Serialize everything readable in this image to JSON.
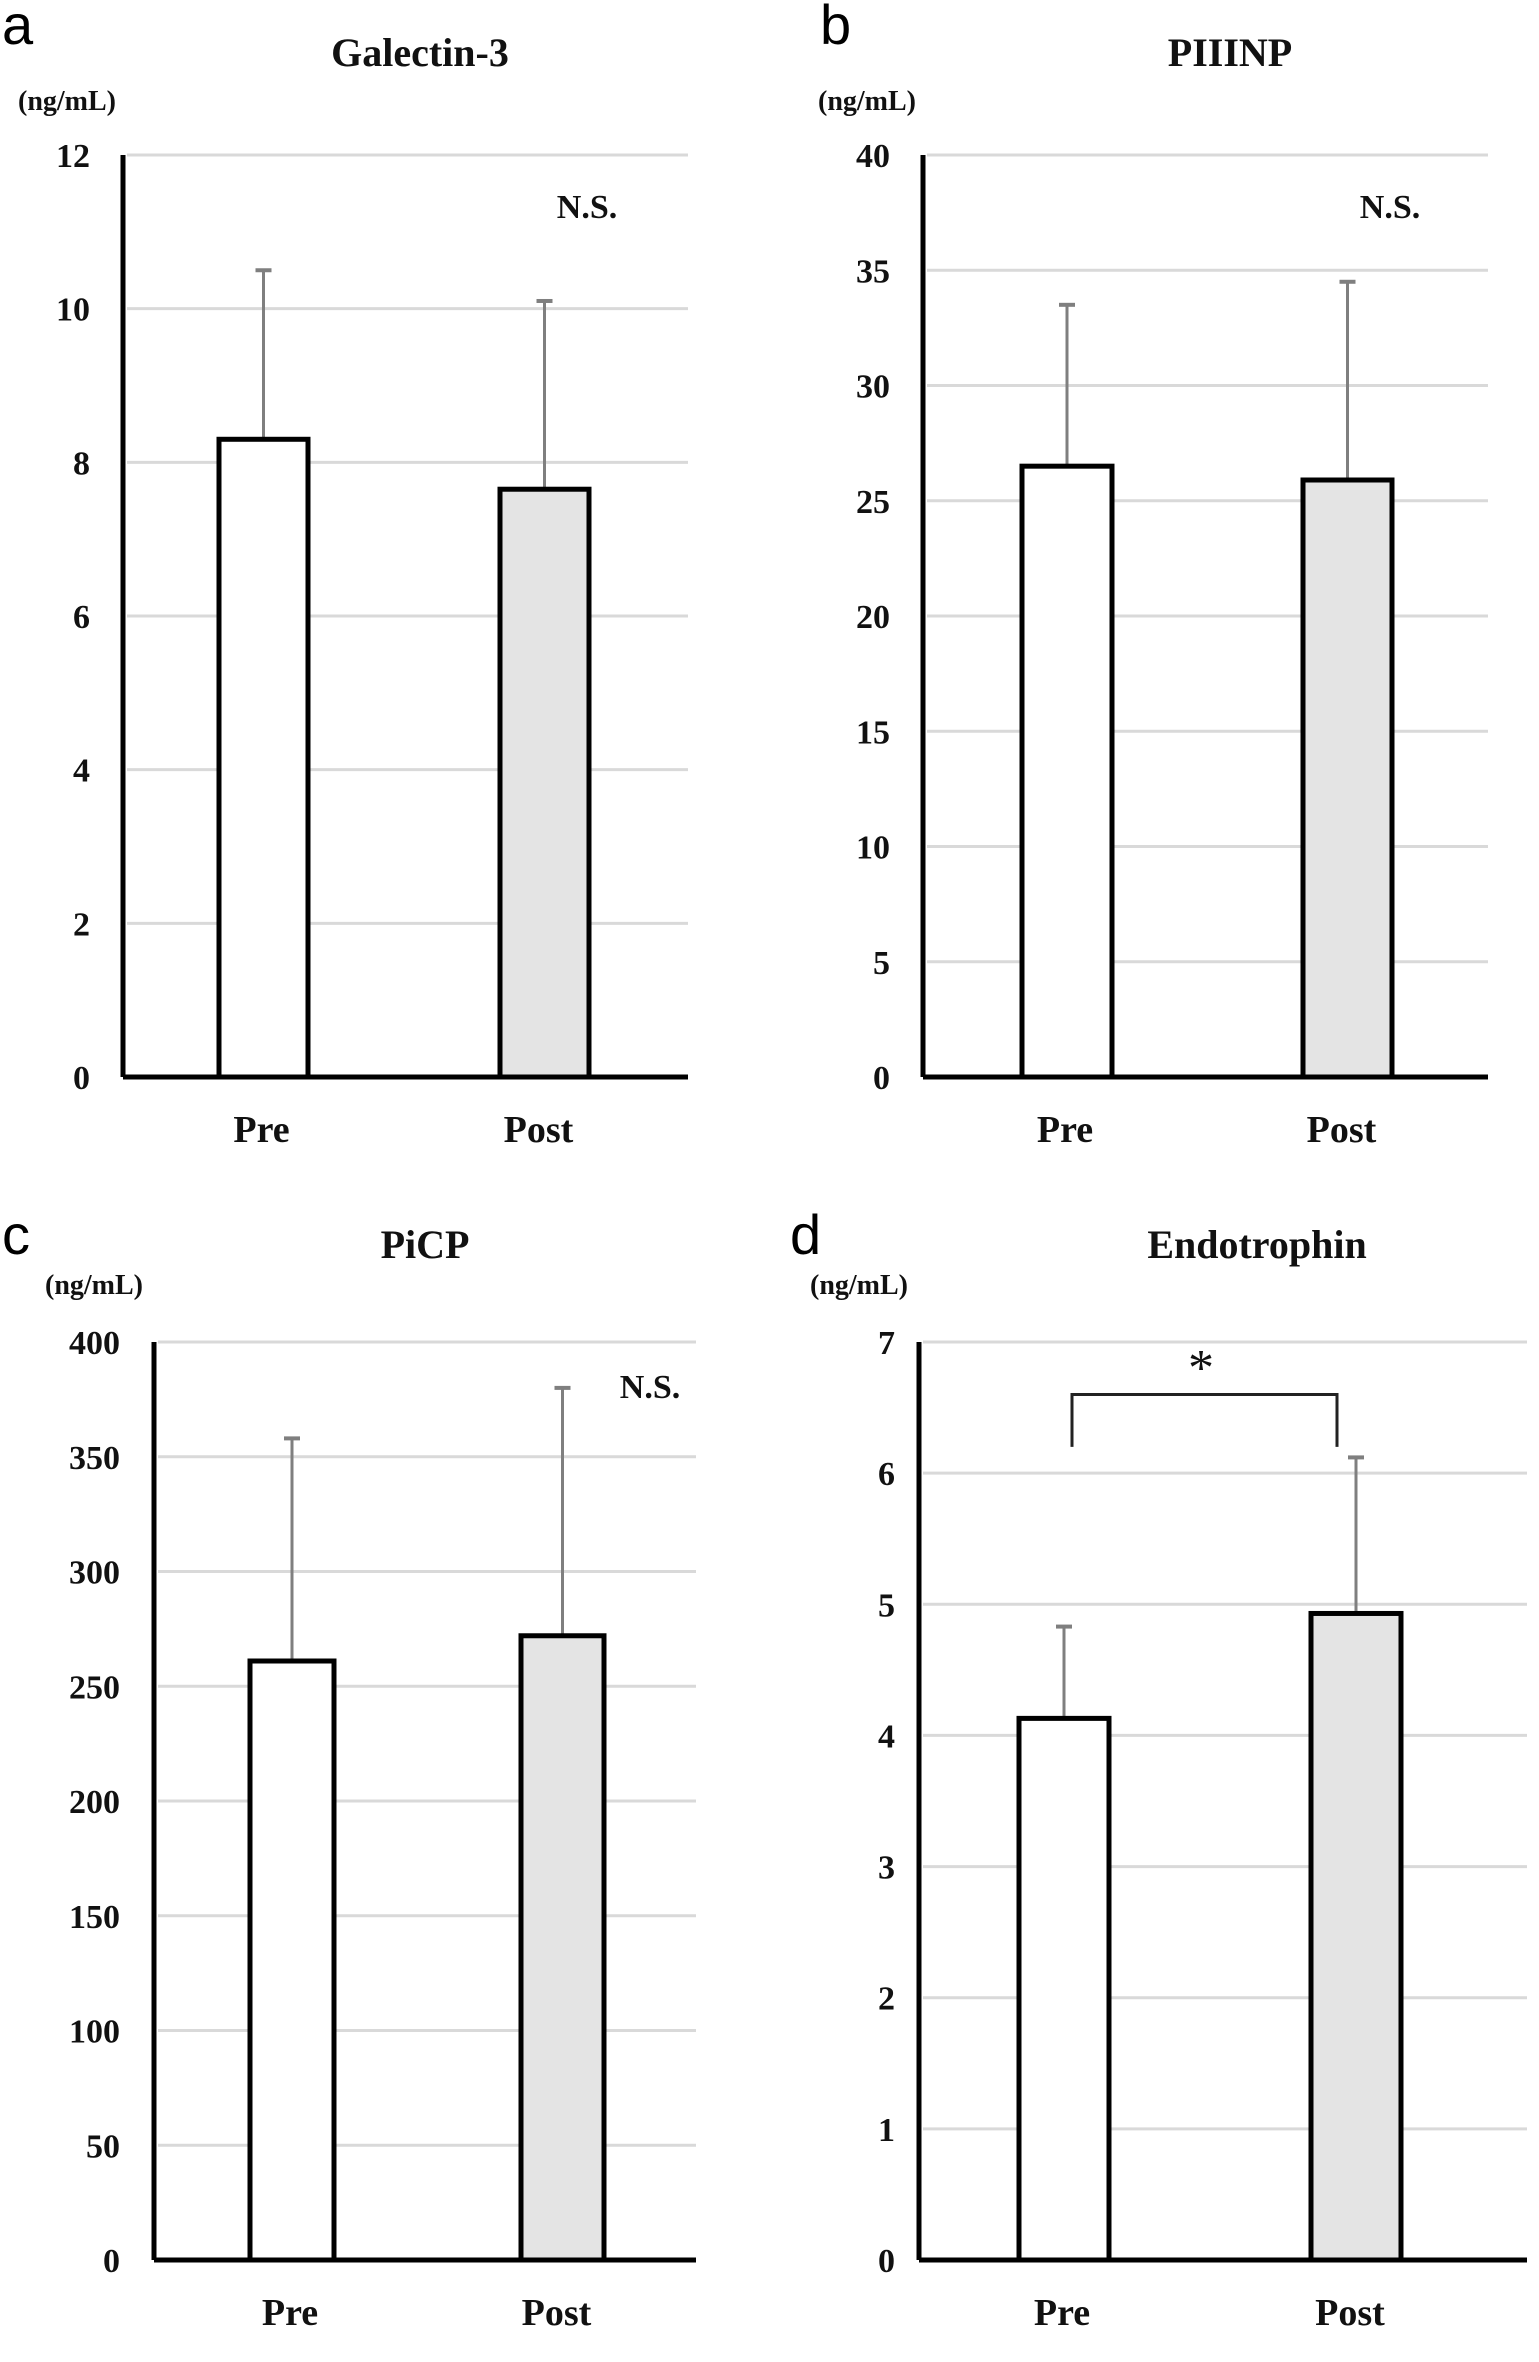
{
  "figure": {
    "panels": [
      "a",
      "b",
      "c",
      "d"
    ]
  },
  "chart_data": [
    {
      "type": "bar",
      "panel_label": "a",
      "title": "Galectin-3",
      "ylabel": "(ng/mL)",
      "xlabel": "",
      "categories": [
        "Pre",
        "Post"
      ],
      "values": [
        8.3,
        7.65
      ],
      "error_upper": [
        10.5,
        10.1
      ],
      "ylim": [
        0,
        12
      ],
      "yticks": [
        0,
        2,
        4,
        6,
        8,
        10,
        12
      ],
      "grid": true,
      "bar_fills": [
        "#ffffff",
        "#e4e4e4"
      ],
      "significance": {
        "label": "N.S.",
        "type": "text"
      }
    },
    {
      "type": "bar",
      "panel_label": "b",
      "title": "PIIINP",
      "ylabel": "(ng/mL)",
      "xlabel": "",
      "categories": [
        "Pre",
        "Post"
      ],
      "values": [
        26.5,
        25.9
      ],
      "error_upper": [
        33.5,
        34.5
      ],
      "ylim": [
        0,
        40
      ],
      "yticks": [
        0,
        5,
        10,
        15,
        20,
        25,
        30,
        35,
        40
      ],
      "grid": true,
      "bar_fills": [
        "#ffffff",
        "#e4e4e4"
      ],
      "significance": {
        "label": "N.S.",
        "type": "text"
      }
    },
    {
      "type": "bar",
      "panel_label": "c",
      "title": "PiCP",
      "ylabel": "(ng/mL)",
      "xlabel": "",
      "categories": [
        "Pre",
        "Post"
      ],
      "values": [
        261,
        272
      ],
      "error_upper": [
        358,
        380
      ],
      "ylim": [
        0,
        400
      ],
      "yticks": [
        0,
        50,
        100,
        150,
        200,
        250,
        300,
        350,
        400
      ],
      "grid": true,
      "bar_fills": [
        "#ffffff",
        "#e4e4e4"
      ],
      "significance": {
        "label": "N.S.",
        "type": "text"
      }
    },
    {
      "type": "bar",
      "panel_label": "d",
      "title": "Endotrophin",
      "ylabel": "(ng/mL)",
      "xlabel": "",
      "categories": [
        "Pre",
        "Post"
      ],
      "values": [
        4.13,
        4.93
      ],
      "error_upper": [
        4.83,
        6.12
      ],
      "ylim": [
        0,
        7
      ],
      "yticks": [
        0,
        1,
        2,
        3,
        4,
        5,
        6,
        7
      ],
      "grid": true,
      "bar_fills": [
        "#ffffff",
        "#e4e4e4"
      ],
      "significance": {
        "label": "*",
        "type": "bracket",
        "bracket_level": 6.6,
        "bracket_leg_bottom": 6.2
      }
    }
  ],
  "colors": {
    "axis": "#000000",
    "grid": "#d9d9d9",
    "error_bar": "#7f7f7f",
    "bar_edge": "#000000"
  }
}
